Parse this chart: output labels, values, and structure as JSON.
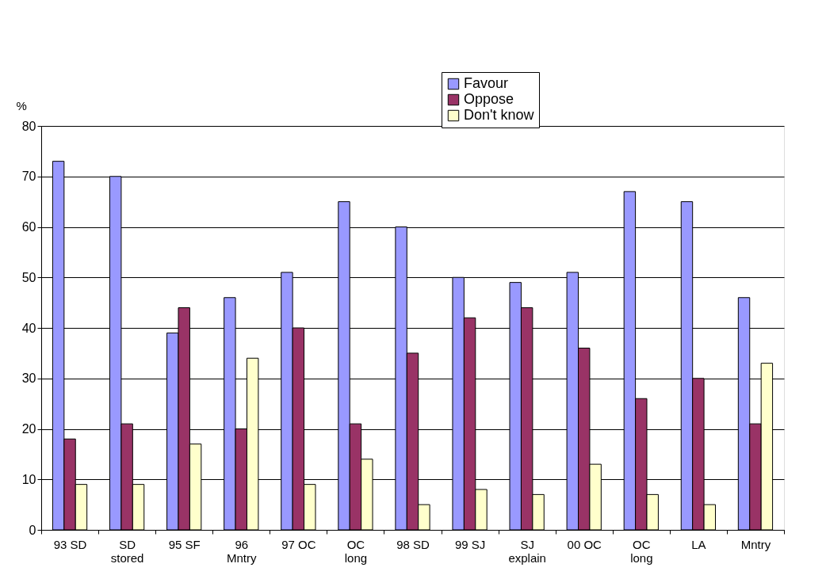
{
  "chart_data": {
    "type": "bar",
    "ylabel": "%",
    "categories": [
      "93 SD",
      "SD\nstored",
      "95 SF",
      "96\nMntry",
      "97 OC",
      "OC\nlong",
      "98 SD",
      "99 SJ",
      "SJ\nexplain",
      "00 OC",
      "OC\nlong",
      "LA",
      "Mntry"
    ],
    "series": [
      {
        "name": "Favour",
        "color": "#9999ff",
        "values": [
          73,
          70,
          39,
          46,
          51,
          65,
          60,
          50,
          49,
          51,
          67,
          65,
          46
        ]
      },
      {
        "name": "Oppose",
        "color": "#993366",
        "values": [
          18,
          21,
          44,
          20,
          40,
          21,
          35,
          42,
          44,
          36,
          26,
          30,
          21
        ]
      },
      {
        "name": "Don't know",
        "color": "#ffffcc",
        "values": [
          9,
          9,
          17,
          34,
          9,
          14,
          5,
          8,
          7,
          13,
          7,
          5,
          33
        ]
      }
    ],
    "ylim": [
      0,
      80
    ],
    "yticks": [
      0,
      10,
      20,
      30,
      40,
      50,
      60,
      70,
      80
    ],
    "grid": "y",
    "legend": "top"
  }
}
